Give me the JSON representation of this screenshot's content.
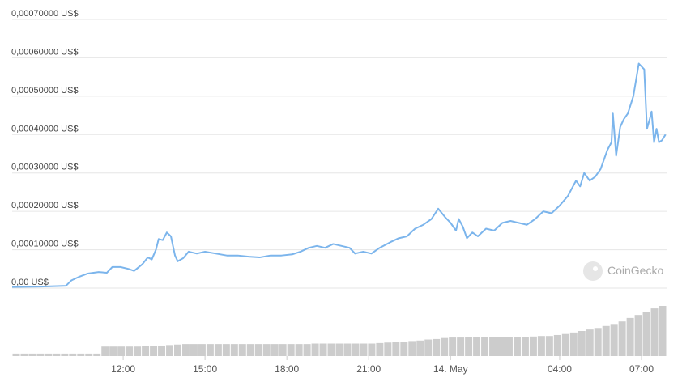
{
  "chart_data": [
    {
      "type": "line",
      "watermark": "CoinGecko",
      "xlim": [
        7.93,
        31.92
      ],
      "ylim": [
        0,
        0.0007
      ],
      "xticks": [
        {
          "value": 12,
          "label": "12:00"
        },
        {
          "value": 15,
          "label": "15:00"
        },
        {
          "value": 18,
          "label": "18:00"
        },
        {
          "value": 21,
          "label": "21:00"
        },
        {
          "value": 24,
          "label": "14. May"
        },
        {
          "value": 28,
          "label": "04:00"
        },
        {
          "value": 31,
          "label": "07:00"
        }
      ],
      "yticks": [
        {
          "value": 0,
          "label": "0,00 US$"
        },
        {
          "value": 0.0001,
          "label": "0,00010000 US$"
        },
        {
          "value": 0.0002,
          "label": "0,00020000 US$"
        },
        {
          "value": 0.0003,
          "label": "0,00030000 US$"
        },
        {
          "value": 0.0004,
          "label": "0,00040000 US$"
        },
        {
          "value": 0.0005,
          "label": "0,00050000 US$"
        },
        {
          "value": 0.0006,
          "label": "0,00060000 US$"
        },
        {
          "value": 0.0007,
          "label": "0,00070000 US$"
        }
      ],
      "grid": true,
      "series": [
        {
          "color": "#7cb5ec",
          "x": [
            7.93,
            9,
            9.9,
            10.1,
            10.4,
            10.7,
            11.1,
            11.4,
            11.6,
            11.9,
            12.2,
            12.4,
            12.7,
            12.9,
            13.05,
            13.2,
            13.3,
            13.45,
            13.6,
            13.75,
            13.9,
            14.0,
            14.2,
            14.4,
            14.7,
            15.0,
            15.4,
            15.8,
            16.2,
            16.6,
            17.0,
            17.4,
            17.8,
            18.2,
            18.5,
            18.8,
            19.1,
            19.4,
            19.7,
            20.0,
            20.3,
            20.5,
            20.8,
            21.1,
            21.4,
            21.8,
            22.1,
            22.4,
            22.7,
            23.0,
            23.3,
            23.55,
            23.8,
            24.0,
            24.2,
            24.3,
            24.45,
            24.6,
            24.8,
            25.0,
            25.3,
            25.6,
            25.9,
            26.2,
            26.5,
            26.8,
            27.1,
            27.4,
            27.7,
            28.0,
            28.3,
            28.6,
            28.75,
            28.9,
            29.1,
            29.3,
            29.5,
            29.75,
            29.9,
            29.95,
            30.07,
            30.22,
            30.35,
            30.5,
            30.7,
            30.9,
            31.1,
            31.2,
            31.3,
            31.37,
            31.46,
            31.55,
            31.64,
            31.75,
            31.88
          ],
          "values": [
            3e-06,
            4e-06,
            6e-06,
            2e-05,
            3e-05,
            3.8e-05,
            4.2e-05,
            4e-05,
            5.5e-05,
            5.5e-05,
            5e-05,
            4.5e-05,
            6.2e-05,
            8e-05,
            7.5e-05,
            0.0001,
            0.000128,
            0.000125,
            0.000145,
            0.000135,
            8.5e-05,
            7e-05,
            7.8e-05,
            9.5e-05,
            9e-05,
            9.5e-05,
            9e-05,
            8.5e-05,
            8.5e-05,
            8.2e-05,
            8e-05,
            8.5e-05,
            8.5e-05,
            8.8e-05,
            9.5e-05,
            0.000105,
            0.00011,
            0.000105,
            0.000115,
            0.00011,
            0.000105,
            9e-05,
            9.5e-05,
            9e-05,
            0.000105,
            0.00012,
            0.00013,
            0.000135,
            0.000155,
            0.000165,
            0.00018,
            0.000207,
            0.000185,
            0.00017,
            0.00015,
            0.00018,
            0.00016,
            0.00013,
            0.000145,
            0.000135,
            0.000155,
            0.00015,
            0.00017,
            0.000175,
            0.00017,
            0.000165,
            0.00018,
            0.0002,
            0.000195,
            0.000215,
            0.00024,
            0.00028,
            0.000265,
            0.0003,
            0.00028,
            0.00029,
            0.00031,
            0.00036,
            0.00038,
            0.000455,
            0.000345,
            0.00042,
            0.00044,
            0.000455,
            0.0005,
            0.000585,
            0.00057,
            0.000415,
            0.00044,
            0.00046,
            0.00038,
            0.000415,
            0.00038,
            0.000385,
            0.0004
          ]
        }
      ]
    },
    {
      "type": "bar",
      "ylim": [
        0,
        100
      ],
      "color": "#cccccc",
      "values": [
        5,
        5,
        5,
        5,
        5,
        5,
        5,
        5,
        5,
        5,
        5,
        19,
        19,
        19,
        19,
        19,
        20,
        20,
        21,
        22,
        23,
        24,
        24,
        24,
        24,
        24,
        24,
        24,
        24,
        24,
        24,
        24,
        24,
        24,
        24,
        24,
        24,
        25,
        25,
        25,
        25,
        25,
        25,
        25,
        25,
        26,
        27,
        28,
        29,
        30,
        31,
        33,
        34,
        36,
        37,
        37,
        38,
        38,
        38,
        38,
        38,
        38,
        38,
        38,
        39,
        40,
        40,
        42,
        44,
        47,
        50,
        53,
        56,
        60,
        64,
        69,
        76,
        82,
        88,
        95,
        100
      ]
    }
  ]
}
